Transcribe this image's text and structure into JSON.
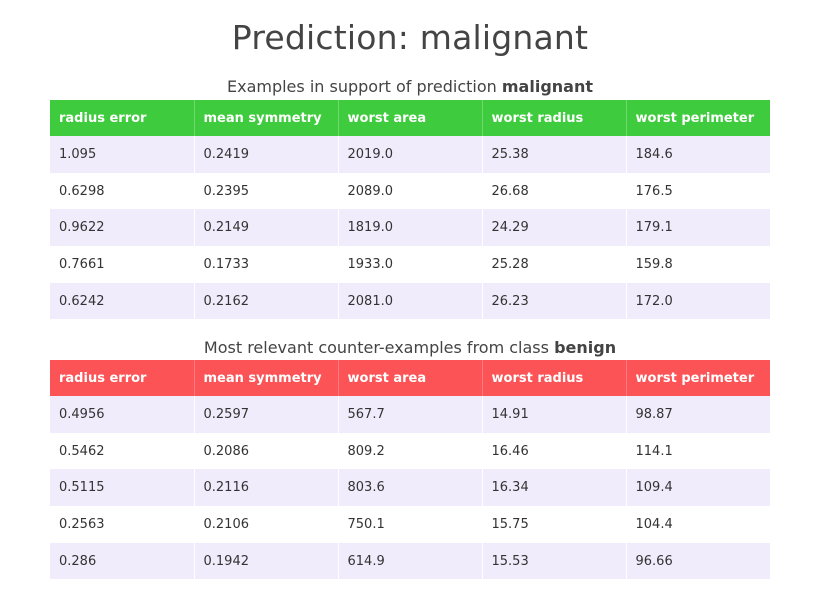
{
  "title": "Prediction: malignant",
  "support": {
    "caption_prefix": "Examples in support of prediction ",
    "caption_bold": "malignant",
    "header_color": "#3ecb3e"
  },
  "counter": {
    "caption_prefix": "Most relevant counter-examples from class ",
    "caption_bold": "benign",
    "header_color": "#fb5356"
  },
  "row_color": "#f1ecfb",
  "chart_data": [
    {
      "type": "table",
      "columns": [
        "radius error",
        "mean symmetry",
        "worst area",
        "worst radius",
        "worst perimeter"
      ],
      "rows": [
        [
          "1.095",
          "0.2419",
          "2019.0",
          "25.38",
          "184.6"
        ],
        [
          "0.6298",
          "0.2395",
          "2089.0",
          "26.68",
          "176.5"
        ],
        [
          "0.9622",
          "0.2149",
          "1819.0",
          "24.29",
          "179.1"
        ],
        [
          "0.7661",
          "0.1733",
          "1933.0",
          "25.28",
          "159.8"
        ],
        [
          "0.6242",
          "0.2162",
          "2081.0",
          "26.23",
          "172.0"
        ]
      ]
    },
    {
      "type": "table",
      "columns": [
        "radius error",
        "mean symmetry",
        "worst area",
        "worst radius",
        "worst perimeter"
      ],
      "rows": [
        [
          "0.4956",
          "0.2597",
          "567.7",
          "14.91",
          "98.87"
        ],
        [
          "0.5462",
          "0.2086",
          "809.2",
          "16.46",
          "114.1"
        ],
        [
          "0.5115",
          "0.2116",
          "803.6",
          "16.34",
          "109.4"
        ],
        [
          "0.2563",
          "0.2106",
          "750.1",
          "15.75",
          "104.4"
        ],
        [
          "0.286",
          "0.1942",
          "614.9",
          "15.53",
          "96.66"
        ]
      ]
    }
  ]
}
